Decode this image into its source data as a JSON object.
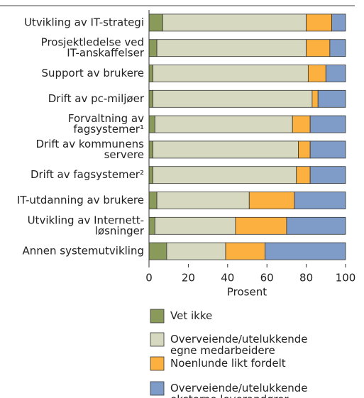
{
  "chart_data": {
    "type": "stacked-barh",
    "categories": [
      [
        "Utvikling av IT-strategi"
      ],
      [
        "Prosjektledelse ved",
        "IT-anskaffelser"
      ],
      [
        "Support av brukere"
      ],
      [
        "Drift av pc-miljøer"
      ],
      [
        "Forvaltning av",
        "fagsystemer¹"
      ],
      [
        "Drift av kommunens",
        "servere"
      ],
      [
        "Drift av fagsystemer²"
      ],
      [
        "IT-utdanning av brukere"
      ],
      [
        "Utvikling av Internett-",
        "løsninger"
      ],
      [
        "Annen systemutvikling"
      ]
    ],
    "series": [
      {
        "name": "Vet ikke",
        "color": "#8a9a5b",
        "values": [
          7,
          4,
          2,
          2,
          3,
          2,
          2,
          4,
          3,
          9
        ]
      },
      {
        "name": "Overveiende/utelukkende egne medarbeidere",
        "color": "#d6d9bf",
        "values": [
          73,
          76,
          79,
          81,
          70,
          74,
          73,
          47,
          41,
          30
        ]
      },
      {
        "name": "Noenlunde likt fordelt",
        "color": "#fbb040",
        "values": [
          13,
          12,
          9,
          3,
          9,
          6,
          7,
          23,
          26,
          20
        ]
      },
      {
        "name": "Overveiende/utelukkende eksterne leverandører",
        "color": "#7f9cc9",
        "values": [
          7,
          8,
          10,
          14,
          18,
          18,
          18,
          26,
          30,
          41
        ]
      }
    ],
    "xlabel": "Prosent",
    "xlim": [
      0,
      100
    ],
    "xticks": [
      0,
      20,
      40,
      60,
      80,
      100
    ]
  }
}
